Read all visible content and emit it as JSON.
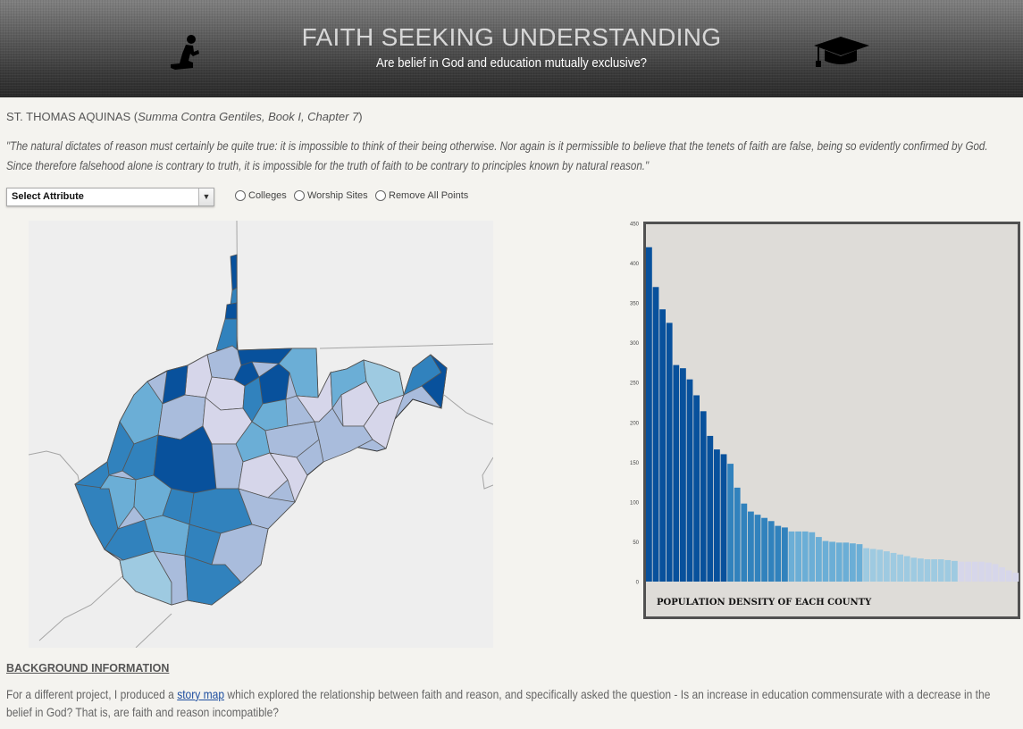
{
  "header": {
    "title": "FAITH SEEKING UNDERSTANDING",
    "subtitle": "Are belief in God and education mutually exclusive?",
    "left_icon": "praying-person-icon",
    "right_icon": "graduation-cap-icon"
  },
  "quote": {
    "author": "ST. THOMAS AQUINAS",
    "work": "Summa Contra Gentiles, Book I, Chapter 7",
    "text": "\"The natural dictates of reason must certainly be quite true: it is impossible to think of their being otherwise. Nor again is it permissible to believe that the tenets of faith are false, being so evidently confirmed by God. Since therefore falsehood alone is contrary to truth, it is impossible for the truth of faith to be contrary to principles known by natural reason.\""
  },
  "controls": {
    "attribute_select": "Select Attribute",
    "radios": [
      "Colleges",
      "Worship Sites",
      "Remove All Points"
    ]
  },
  "colors": {
    "class1": "#08519c",
    "class2": "#3182bd",
    "class3": "#6baed6",
    "class4": "#9ecae1",
    "class5": "#d6d6ea",
    "state_border": "#333333",
    "background": "#f4f3ef"
  },
  "chart_data": {
    "type": "bar",
    "title": "POPULATION DENSITY OF EACH COUNTY",
    "xlabel": "",
    "ylabel": "",
    "ylim": [
      0,
      450
    ],
    "yticks": [
      0,
      50,
      100,
      150,
      200,
      250,
      300,
      350,
      400,
      450
    ],
    "values": [
      420,
      370,
      342,
      325,
      272,
      268,
      254,
      234,
      214,
      183,
      166,
      160,
      148,
      118,
      98,
      88,
      84,
      80,
      76,
      70,
      68,
      63,
      63,
      63,
      62,
      56,
      51,
      50,
      49,
      49,
      48,
      47,
      42,
      41,
      40,
      38,
      36,
      34,
      32,
      30,
      29,
      28,
      28,
      28,
      27,
      26,
      25,
      25,
      25,
      25,
      24,
      22,
      18,
      14,
      11
    ],
    "legend": "none",
    "grid": false
  },
  "background": {
    "heading": "BACKGROUND INFORMATION",
    "text_before": "For a different project, I produced a ",
    "link_text": "story map",
    "text_after": " which explored the relationship between faith and reason, and specifically asked the question - Is an increase in education commensurate with a decrease in the belief in God? That is, are faith and reason incompatible?"
  }
}
